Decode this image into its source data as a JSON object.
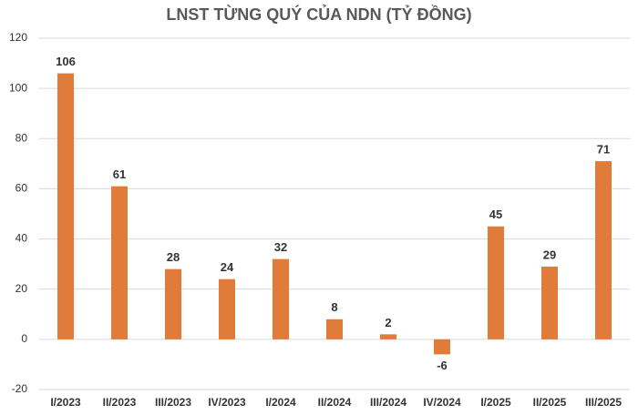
{
  "chart_data": {
    "type": "bar",
    "title": "LNST TỪNG QUÝ CỦA NDN (TỶ ĐỒNG)",
    "categories": [
      "I/2023",
      "II/2023",
      "III/2023",
      "IV/2023",
      "I/2024",
      "II/2024",
      "III/2024",
      "IV/2024",
      "I/2025",
      "II/2025",
      "III/2025"
    ],
    "values": [
      106,
      61,
      28,
      24,
      32,
      8,
      2,
      -6,
      45,
      29,
      71
    ],
    "color": "#e07b39",
    "ylim": [
      -20,
      120
    ],
    "yticks": [
      -20,
      0,
      20,
      40,
      60,
      80,
      100,
      120
    ],
    "grid": true
  }
}
